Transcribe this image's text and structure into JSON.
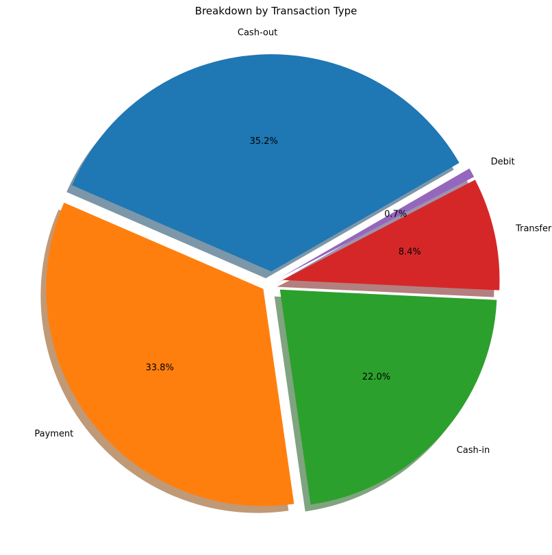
{
  "chart_data": {
    "type": "pie",
    "title": "Breakdown by Transaction Type",
    "start_angle_deg": 30,
    "direction": "counterclockwise",
    "shadow": true,
    "slices": [
      {
        "label": "Cash-out",
        "value": 35.2,
        "pct_label": "35.2%",
        "color": "#1f77b4",
        "explode": 0.05
      },
      {
        "label": "Payment",
        "value": 33.8,
        "pct_label": "33.8%",
        "color": "#ff7f0e",
        "explode": 0.05
      },
      {
        "label": "Cash-in",
        "value": 22.0,
        "pct_label": "22.0%",
        "color": "#2ca02c",
        "explode": 0.05
      },
      {
        "label": "Transfer",
        "value": 8.4,
        "pct_label": "8.4%",
        "color": "#d62728",
        "explode": 0.05
      },
      {
        "label": "Debit",
        "value": 0.7,
        "pct_label": "0.7%",
        "color": "#9467bd",
        "explode": 0.05
      }
    ]
  }
}
